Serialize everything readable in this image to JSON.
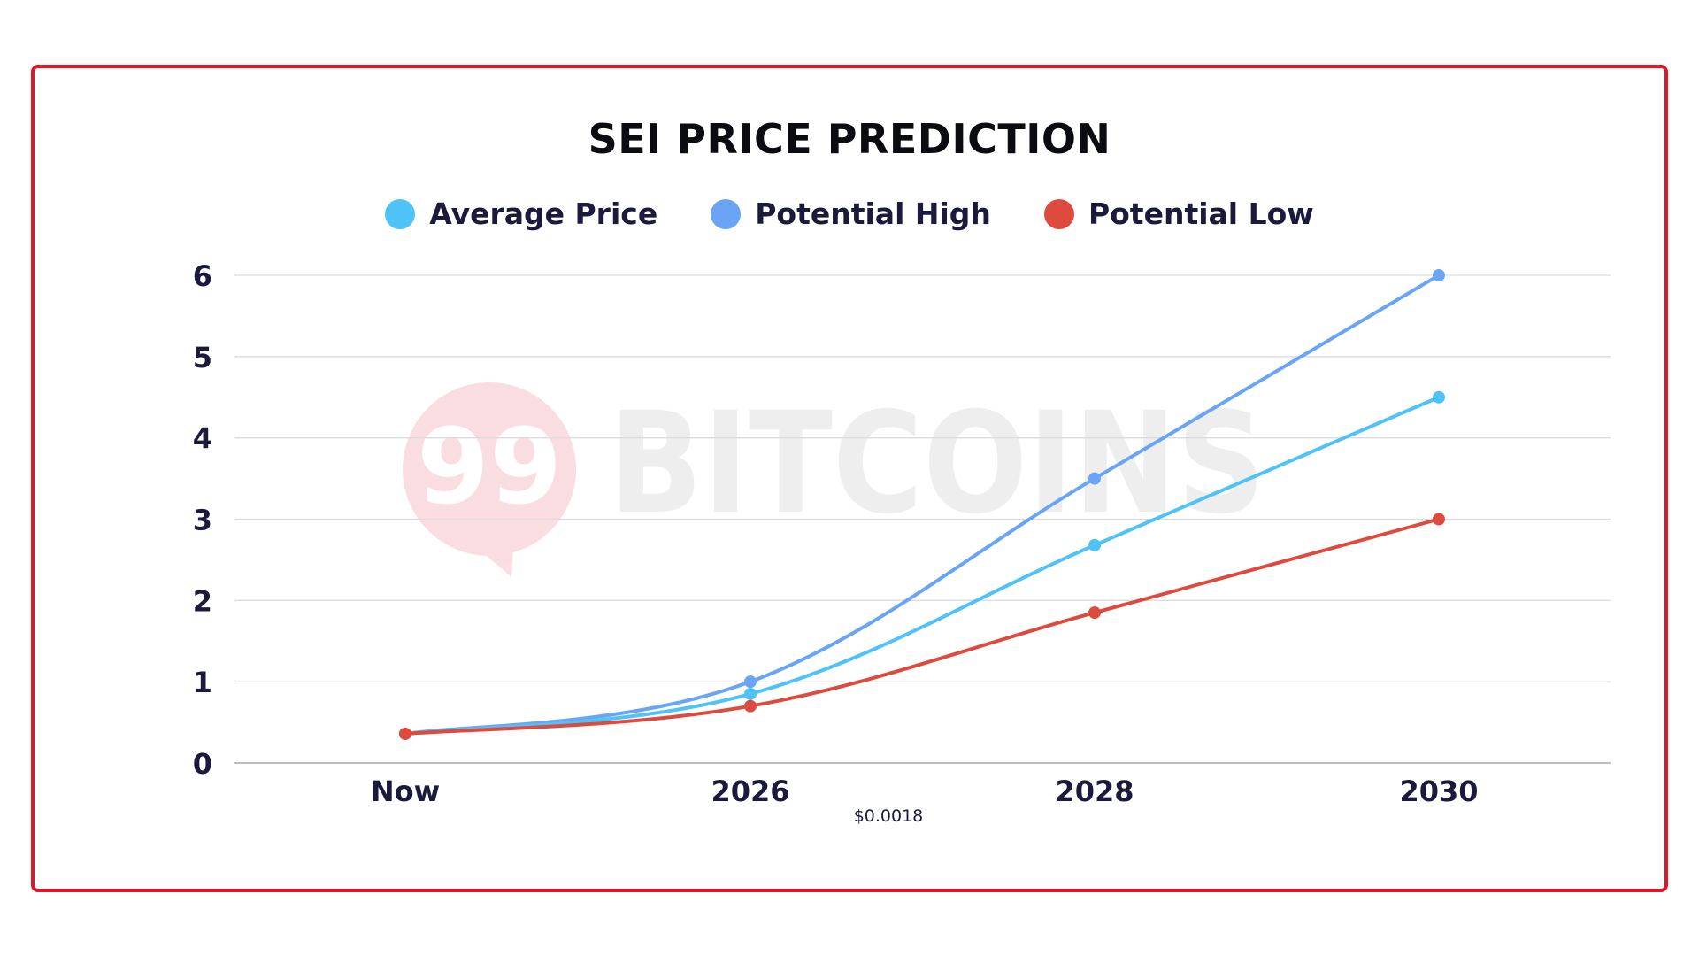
{
  "chart_data": {
    "type": "line",
    "title": "SEI PRICE PREDICTION",
    "categories": [
      "Now",
      "2026",
      "2028",
      "2030"
    ],
    "series": [
      {
        "name": "Average Price",
        "color": "#4fc3f7",
        "values": [
          0.36,
          0.85,
          2.68,
          4.5
        ]
      },
      {
        "name": "Potential High",
        "color": "#6aa5f5",
        "values": [
          0.36,
          1.0,
          3.5,
          6.0
        ]
      },
      {
        "name": "Potential Low",
        "color": "#dd4b3f",
        "values": [
          0.36,
          0.7,
          1.85,
          3.0
        ]
      }
    ],
    "ylim": [
      0,
      6
    ],
    "yticks": [
      "0",
      "1",
      "2",
      "3",
      "4",
      "5",
      "6"
    ],
    "grid": true,
    "legend_position": "top-center",
    "annotation": "$0.0018"
  },
  "watermark": {
    "logo_text": "99",
    "brand_text": "BITCOINS"
  },
  "colors": {
    "frame": "#e0162b",
    "grid": "#dcdcdc",
    "axis_text": "#1b1a3c"
  }
}
